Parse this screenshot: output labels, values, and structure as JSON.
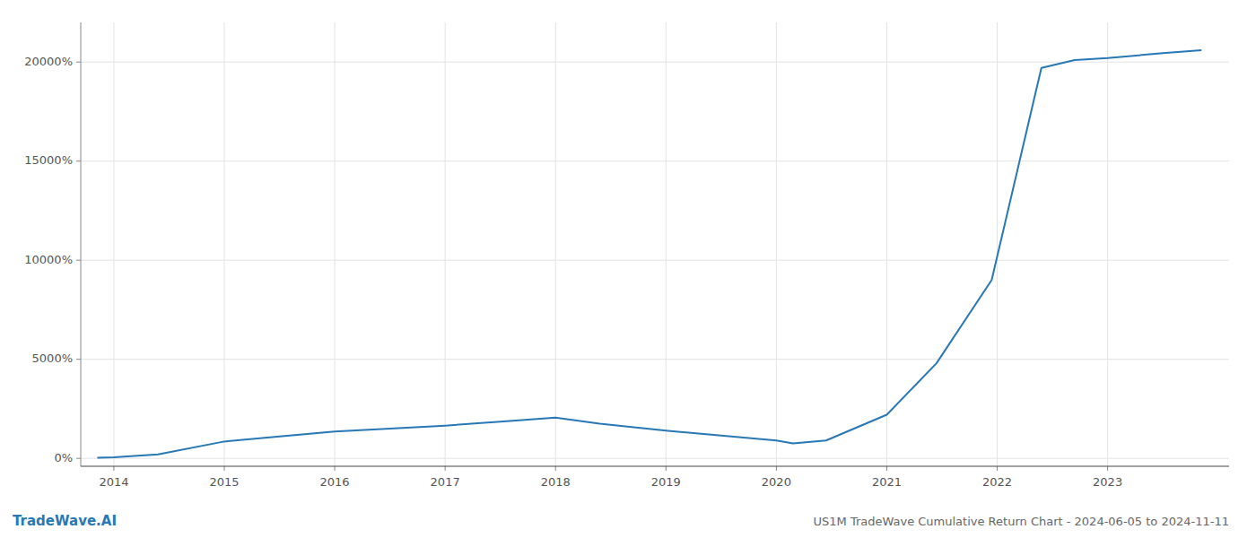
{
  "chart_data": {
    "type": "line",
    "title": "US1M TradeWave Cumulative Return Chart - 2024-06-05 to 2024-11-11",
    "annotations": [
      {
        "text": "TradeWave.AI",
        "color": "#2878b5"
      }
    ],
    "x": [
      2013.85,
      2014.0,
      2014.4,
      2015.0,
      2015.5,
      2016.0,
      2016.5,
      2017.0,
      2017.5,
      2018.0,
      2018.4,
      2019.0,
      2019.5,
      2020.0,
      2020.15,
      2020.45,
      2021.0,
      2021.45,
      2021.95,
      2022.4,
      2022.7,
      2023.0,
      2023.5,
      2023.85
    ],
    "values": [
      30,
      50,
      200,
      850,
      1100,
      1350,
      1500,
      1650,
      1850,
      2050,
      1750,
      1400,
      1150,
      900,
      750,
      900,
      2200,
      4800,
      9000,
      19700,
      20100,
      20200,
      20450,
      20600
    ],
    "color": "#2878b5",
    "xlim": [
      2013.7,
      2024.1
    ],
    "ylim": [
      -400,
      22000
    ],
    "xticks": [
      2014,
      2015,
      2016,
      2017,
      2018,
      2019,
      2020,
      2021,
      2022,
      2023
    ],
    "yticks": [
      {
        "value": 0,
        "label": "0%"
      },
      {
        "value": 5000,
        "label": "5000%"
      },
      {
        "value": 10000,
        "label": "10000%"
      },
      {
        "value": 15000,
        "label": "15000%"
      },
      {
        "value": 20000,
        "label": "20000%"
      }
    ],
    "grid": true
  }
}
